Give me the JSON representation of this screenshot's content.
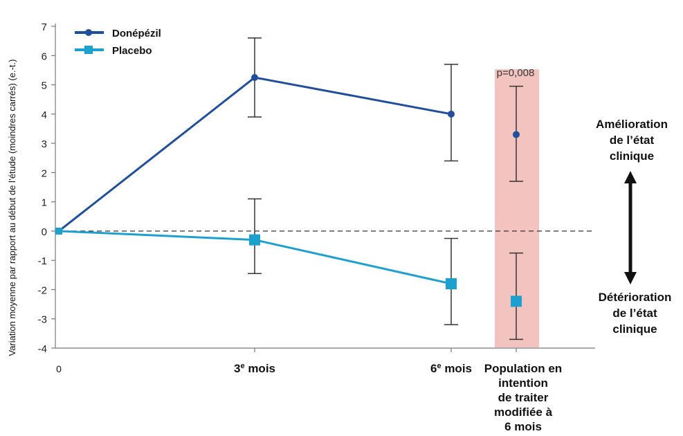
{
  "chart_data": {
    "type": "line",
    "ylabel": "Variation moyenne par rapport au début de l’étude (moindres carrés) (e.-t.)",
    "ylim": [
      -4,
      7
    ],
    "y_ticks": [
      "7",
      "6",
      "5",
      "4",
      "3",
      "2",
      "1",
      "0",
      "-1",
      "-2",
      "-3",
      "-4"
    ],
    "categories": [
      "0",
      "3e mois",
      "6e mois",
      "Population en intention de traiter modifiée à 6 mois"
    ],
    "category_labels": [
      {
        "main": "0",
        "sup": "",
        "rest": ""
      },
      {
        "main": "3",
        "sup": "e",
        "rest": " mois"
      },
      {
        "main": "6",
        "sup": "e",
        "rest": " mois"
      },
      {
        "main": "Population en\nintention\nde traiter\nmodifiée à\n6 mois",
        "sup": "",
        "rest": ""
      }
    ],
    "series": [
      {
        "name": "Donépézil",
        "color": "#1f4e9c",
        "marker": "circle",
        "values": [
          0,
          5.25,
          4.0,
          3.3
        ],
        "err_low": [
          null,
          3.9,
          2.4,
          1.7
        ],
        "err_high": [
          null,
          6.6,
          5.7,
          4.95
        ],
        "connected": [
          true,
          true,
          true,
          false
        ]
      },
      {
        "name": "Placebo",
        "color": "#1ea0cf",
        "marker": "square",
        "values": [
          0,
          -0.3,
          -1.8,
          -2.4
        ],
        "err_low": [
          null,
          -1.45,
          -3.2,
          -3.7
        ],
        "err_high": [
          null,
          1.1,
          -0.25,
          -0.75
        ],
        "connected": [
          true,
          true,
          true,
          false
        ]
      }
    ],
    "reference_line": 0,
    "highlight": {
      "category_index": 3,
      "color": "#f1b9b4",
      "label": "p=0,008"
    },
    "annotations": {
      "improvement": "Amélioration\nde l’état\nclinique",
      "deterioration": "Détérioration\nde l’état\nclinique"
    },
    "legend_placement": "top-left",
    "grid": false
  }
}
